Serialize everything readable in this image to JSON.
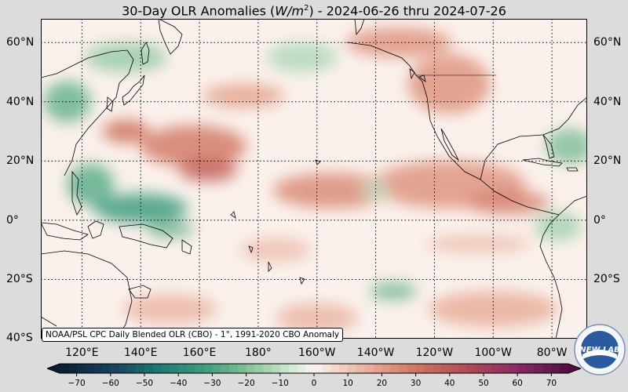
{
  "title": {
    "prefix": "30-Day OLR Anomalies (",
    "unit_base": "W/m",
    "unit_exp": "2",
    "suffix": ") - 2024-06-26 thru 2024-07-26"
  },
  "credit": "NOAA/PSL CPC Daily Blended OLR (CBO) - 1°, 1991-2020 CBO Anomaly",
  "logo": {
    "name": "noaa-physical-sciences-laboratory-logo",
    "text": "NEW LAB"
  },
  "map": {
    "lat_labels": [
      "60°N",
      "40°N",
      "20°N",
      "0°",
      "20°S",
      "40°S"
    ],
    "lat_values": [
      60,
      40,
      20,
      0,
      -20,
      -40
    ],
    "lon_labels": [
      "120°E",
      "140°E",
      "160°E",
      "180°",
      "160°W",
      "140°W",
      "120°W",
      "100°W",
      "80°W"
    ],
    "lon_values": [
      120,
      140,
      160,
      180,
      200,
      220,
      240,
      260,
      280
    ],
    "lon_range": [
      106,
      292
    ],
    "lat_range": [
      -40,
      68
    ]
  },
  "colorbar": {
    "ticks": [
      "−70",
      "−60",
      "−50",
      "−40",
      "−30",
      "−20",
      "−10",
      "0",
      "10",
      "20",
      "30",
      "40",
      "50",
      "60",
      "70"
    ],
    "range": [
      -75,
      75
    ],
    "colors": {
      "-75": "#0b1d33",
      "-60": "#17405a",
      "-45": "#1f7a73",
      "-30": "#46a283",
      "-18": "#8ec59e",
      "-6": "#d6ebd7",
      "0": "#faf4f1",
      "6": "#f4d9cc",
      "18": "#e5a591",
      "30": "#cf7462",
      "45": "#b14a58",
      "60": "#8a2a63",
      "75": "#4f0f45"
    }
  },
  "anomaly_regions": [
    {
      "lon": 158,
      "lat": 25,
      "rx": 18,
      "ry": 7,
      "value": 28
    },
    {
      "lon": 163,
      "lat": 17,
      "rx": 10,
      "ry": 4,
      "value": 35
    },
    {
      "lon": 135,
      "lat": 30,
      "rx": 8,
      "ry": 4,
      "value": 30
    },
    {
      "lon": 205,
      "lat": 10,
      "rx": 20,
      "ry": 6,
      "value": 24
    },
    {
      "lon": 245,
      "lat": 12,
      "rx": 26,
      "ry": 8,
      "value": 22
    },
    {
      "lon": 265,
      "lat": 6,
      "rx": 14,
      "ry": 4,
      "value": 26
    },
    {
      "lon": 228,
      "lat": 60,
      "rx": 18,
      "ry": 5,
      "value": 22
    },
    {
      "lon": 245,
      "lat": 46,
      "rx": 14,
      "ry": 10,
      "value": 22
    },
    {
      "lon": 175,
      "lat": 42,
      "rx": 14,
      "ry": 4,
      "value": 18
    },
    {
      "lon": 255,
      "lat": -8,
      "rx": 18,
      "ry": 3,
      "value": 12
    },
    {
      "lon": 260,
      "lat": -30,
      "rx": 22,
      "ry": 6,
      "value": 16
    },
    {
      "lon": 200,
      "lat": -33,
      "rx": 14,
      "ry": 5,
      "value": 14
    },
    {
      "lon": 150,
      "lat": -30,
      "rx": 16,
      "ry": 5,
      "value": 14
    },
    {
      "lon": 186,
      "lat": -10,
      "rx": 12,
      "ry": 4,
      "value": 12
    },
    {
      "lon": 140,
      "lat": 4,
      "rx": 16,
      "ry": 5,
      "value": -32
    },
    {
      "lon": 150,
      "lat": -3,
      "rx": 8,
      "ry": 3,
      "value": -22
    },
    {
      "lon": 123,
      "lat": 12,
      "rx": 8,
      "ry": 7,
      "value": -26
    },
    {
      "lon": 115,
      "lat": 40,
      "rx": 8,
      "ry": 7,
      "value": -24
    },
    {
      "lon": 135,
      "lat": 55,
      "rx": 14,
      "ry": 5,
      "value": -16
    },
    {
      "lon": 195,
      "lat": 55,
      "rx": 12,
      "ry": 5,
      "value": -12
    },
    {
      "lon": 226,
      "lat": -24,
      "rx": 8,
      "ry": 3,
      "value": -22
    },
    {
      "lon": 220,
      "lat": 10,
      "rx": 5,
      "ry": 3,
      "value": -10
    },
    {
      "lon": 286,
      "lat": 25,
      "rx": 8,
      "ry": 6,
      "value": -20
    },
    {
      "lon": 282,
      "lat": -2,
      "rx": 8,
      "ry": 5,
      "value": -14
    }
  ]
}
